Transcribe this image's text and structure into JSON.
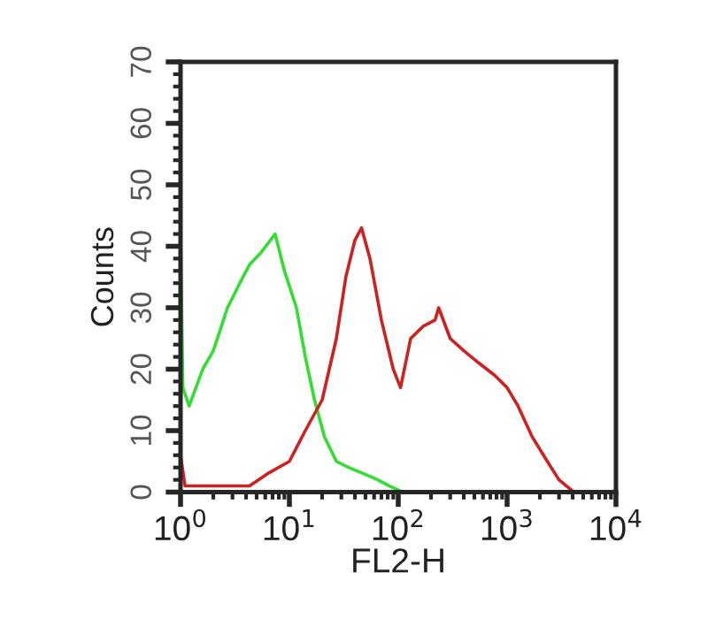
{
  "chart_data": {
    "type": "line",
    "xlabel": "FL2-H",
    "ylabel": "Counts",
    "log": "x",
    "xlim": [
      1,
      10000
    ],
    "ylim": [
      0,
      70
    ],
    "xticks": [
      {
        "value": 1,
        "label": "10$^{0}$"
      },
      {
        "value": 10,
        "label": "10$^{1}$"
      },
      {
        "value": 100,
        "label": "10$^{2}$"
      },
      {
        "value": 1000,
        "label": "10$^{3}$"
      },
      {
        "value": 10000,
        "label": "10$^{4}$"
      }
    ],
    "yticks": [
      0,
      10,
      20,
      30,
      40,
      50,
      60,
      70
    ],
    "grid": false,
    "series": [
      {
        "color": "#33dd33",
        "x": [
          1,
          1,
          1.05,
          1.2,
          1.6,
          2.0,
          2.7,
          3.5,
          4.3,
          5.5,
          7.4,
          9,
          11.6,
          14,
          17,
          21,
          27,
          35,
          48,
          65,
          83,
          110,
          500,
          10000
        ],
        "values": [
          0,
          42,
          17,
          14,
          20,
          23,
          30,
          34,
          37,
          39,
          42,
          36,
          30,
          22,
          15,
          9,
          5,
          4,
          3,
          2,
          1,
          0,
          0,
          0
        ]
      },
      {
        "color": "#cc2222",
        "x": [
          1,
          1,
          1.1,
          2,
          3,
          4.3,
          6.3,
          10,
          14,
          20,
          27,
          33,
          40,
          46,
          55,
          70,
          90,
          105,
          130,
          170,
          218,
          235,
          300,
          400,
          550,
          770,
          1000,
          1260,
          1700,
          2340,
          3000,
          4100,
          10000
        ],
        "values": [
          0,
          6,
          1,
          1,
          1,
          1,
          3,
          5,
          10,
          15,
          25,
          35,
          41,
          43,
          38,
          28,
          20,
          17,
          25,
          27,
          28,
          30,
          25,
          23,
          21,
          19,
          17,
          14,
          9,
          5,
          2,
          0,
          0
        ]
      }
    ]
  }
}
